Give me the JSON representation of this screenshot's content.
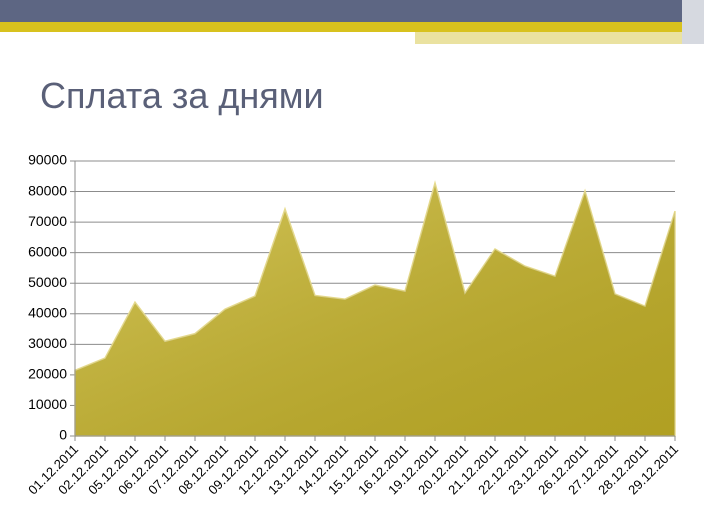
{
  "chart_data": {
    "type": "area",
    "title": "Сплата за днями",
    "categories": [
      "01.12.2011",
      "02.12.2011",
      "05.12.2011",
      "06.12.2011",
      "07.12.2011",
      "08.12.2011",
      "09.12.2011",
      "12.12.2011",
      "13.12.2011",
      "14.12.2011",
      "15.12.2011",
      "16.12.2011",
      "19.12.2011",
      "20.12.2011",
      "21.12.2011",
      "22.12.2011",
      "23.12.2011",
      "26.12.2011",
      "27.12.2011",
      "28.12.2011",
      "29.12.2011"
    ],
    "values": [
      21500,
      25500,
      43800,
      31000,
      33500,
      41500,
      45800,
      74300,
      46000,
      44800,
      49400,
      47400,
      82800,
      46800,
      61200,
      55600,
      52300,
      80200,
      46500,
      42500,
      73600
    ],
    "color": "#c9b627",
    "ylim": [
      0,
      90000
    ],
    "yticks": [
      0,
      10000,
      20000,
      30000,
      40000,
      50000,
      60000,
      70000,
      80000,
      90000
    ],
    "grid": true
  }
}
